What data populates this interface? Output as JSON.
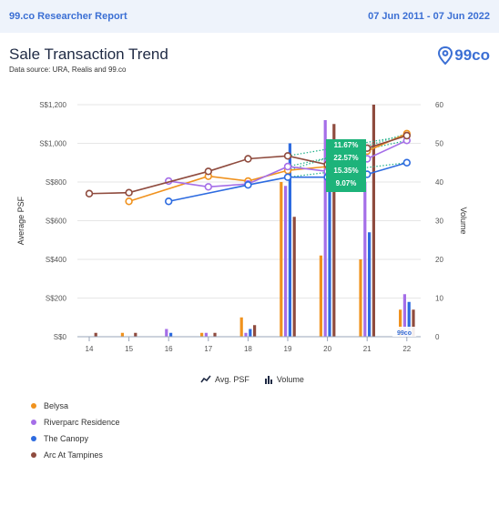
{
  "header": {
    "report_title": "99.co Researcher Report",
    "date_range": "07 Jun 2011 - 07 Jun 2022"
  },
  "title": "Sale Transaction Trend",
  "subtitle": "Data source: URA, Realis and 99.co",
  "logo_text": "99co",
  "badge_text": "99co",
  "legend_inline": {
    "avg_psf": "Avg. PSF",
    "volume": "Volume"
  },
  "tooltip": [
    "11.67%",
    "22.57%",
    "15.35%",
    "9.07%"
  ],
  "chart_data": {
    "type": "bar+line",
    "ylabel": "Average PSF",
    "y2label": "Volume",
    "categories": [
      "14",
      "15",
      "16",
      "17",
      "18",
      "19",
      "20",
      "21",
      "22"
    ],
    "ylim": [
      0,
      1200
    ],
    "y2lim": [
      0,
      60
    ],
    "y_ticks": [
      "S$0",
      "S$200",
      "S$400",
      "S$600",
      "S$800",
      "S$1,000",
      "S$1,200"
    ],
    "y2_ticks": [
      "0",
      "10",
      "20",
      "30",
      "40",
      "50",
      "60"
    ],
    "series": [
      {
        "name": "Belysa",
        "color": "#f0921e",
        "volume": [
          0,
          1,
          0,
          1,
          5,
          40,
          21,
          20,
          7
        ],
        "psf": [
          null,
          700,
          null,
          830,
          805,
          860,
          880,
          960,
          1050
        ]
      },
      {
        "name": "Riverparc Residence",
        "color": "#a56ee8",
        "volume": [
          0,
          0,
          2,
          1,
          1,
          39,
          56,
          40,
          11
        ],
        "psf": [
          null,
          null,
          805,
          775,
          790,
          880,
          855,
          920,
          1015
        ]
      },
      {
        "name": "The Canopy",
        "color": "#2d6be0",
        "volume": [
          0,
          0,
          1,
          0,
          2,
          50,
          47,
          27,
          9
        ],
        "psf": [
          null,
          null,
          700,
          null,
          785,
          825,
          825,
          840,
          900
        ]
      },
      {
        "name": "Arc At Tampines",
        "color": "#8f4b3e",
        "volume": [
          1,
          1,
          0,
          1,
          3,
          31,
          55,
          60,
          7
        ],
        "psf": [
          740,
          745,
          null,
          855,
          920,
          935,
          890,
          975,
          1040
        ]
      }
    ],
    "dotted_trends": "19 to 22"
  }
}
